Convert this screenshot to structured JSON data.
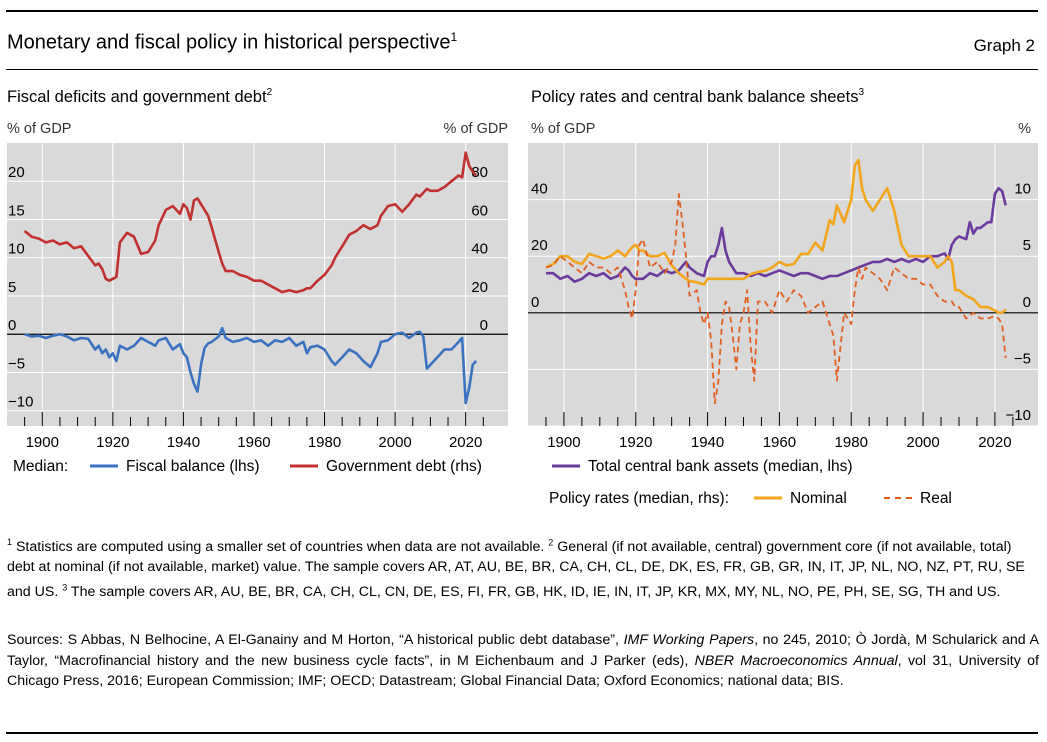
{
  "header": {
    "title": "Monetary and fiscal policy in historical perspective",
    "title_sup": "1",
    "graph_number": "Graph 2"
  },
  "chart_data": [
    {
      "type": "line",
      "title": "Fiscal deficits and government debt",
      "title_sup": "2",
      "ylabel_left": "% of GDP",
      "ylabel_right": "% of GDP",
      "xlim": [
        1890,
        2032
      ],
      "ylim_left": [
        -12,
        25
      ],
      "ylim_right": [
        -48,
        100
      ],
      "yticks_left": [
        20,
        15,
        10,
        5,
        0,
        -5,
        -10
      ],
      "yticks_right": [
        80,
        60,
        40,
        20,
        0
      ],
      "xticks": [
        1900,
        1920,
        1940,
        1960,
        1980,
        2000,
        2020
      ],
      "legend_prefix": "Median:",
      "colors": {
        "fiscal": "#3a72c2",
        "debt": "#c0312f"
      },
      "series": [
        {
          "name": "Fiscal balance (lhs)",
          "axis": "left",
          "x": [
            1895,
            1897,
            1899,
            1901,
            1903,
            1905,
            1907,
            1909,
            1911,
            1913,
            1915,
            1916,
            1917,
            1918,
            1919,
            1920,
            1921,
            1922,
            1924,
            1926,
            1928,
            1930,
            1932,
            1933,
            1935,
            1937,
            1939,
            1940,
            1941,
            1942,
            1943,
            1944,
            1945,
            1946,
            1947,
            1948,
            1950,
            1951,
            1952,
            1954,
            1956,
            1958,
            1960,
            1962,
            1964,
            1966,
            1968,
            1970,
            1972,
            1974,
            1975,
            1976,
            1978,
            1980,
            1982,
            1983,
            1985,
            1987,
            1989,
            1991,
            1993,
            1995,
            1996,
            1998,
            2000,
            2002,
            2004,
            2006,
            2007,
            2008,
            2009,
            2010,
            2012,
            2014,
            2016,
            2018,
            2019,
            2020,
            2021,
            2022,
            2023
          ],
          "values": [
            0,
            -0.3,
            -0.2,
            -0.5,
            -0.2,
            0,
            -0.3,
            -0.8,
            -0.5,
            -0.6,
            -2,
            -1.5,
            -2.5,
            -2,
            -3,
            -2.5,
            -3.5,
            -1.5,
            -2,
            -1.5,
            -0.5,
            -1,
            -1.5,
            -0.8,
            -0.5,
            -2,
            -1.3,
            -2.5,
            -3,
            -5,
            -6.5,
            -7.5,
            -4,
            -1.8,
            -1.2,
            -1,
            -0.3,
            0.8,
            -0.5,
            -1,
            -0.8,
            -0.5,
            -1,
            -0.8,
            -1.5,
            -0.8,
            -1,
            -0.5,
            -1.5,
            -1,
            -2.5,
            -1.7,
            -1.5,
            -2,
            -3.5,
            -4,
            -3,
            -2,
            -2.5,
            -3.5,
            -4.3,
            -2.5,
            -1,
            -0.8,
            0,
            0.2,
            -0.5,
            0.2,
            0.3,
            -0.3,
            -4.5,
            -4,
            -3,
            -2,
            -2,
            -1,
            -0.5,
            -9,
            -7,
            -4,
            -3.5
          ]
        },
        {
          "name": "Government debt (rhs)",
          "axis": "right",
          "x": [
            1895,
            1897,
            1899,
            1901,
            1903,
            1905,
            1907,
            1909,
            1911,
            1913,
            1915,
            1916,
            1917,
            1918,
            1919,
            1920,
            1921,
            1922,
            1924,
            1926,
            1928,
            1930,
            1932,
            1933,
            1935,
            1937,
            1939,
            1940,
            1941,
            1942,
            1943,
            1944,
            1945,
            1946,
            1947,
            1948,
            1950,
            1951,
            1952,
            1954,
            1956,
            1958,
            1960,
            1962,
            1964,
            1966,
            1968,
            1970,
            1972,
            1974,
            1975,
            1976,
            1978,
            1980,
            1982,
            1983,
            1985,
            1987,
            1989,
            1991,
            1993,
            1995,
            1996,
            1998,
            2000,
            2002,
            2004,
            2006,
            2007,
            2008,
            2009,
            2010,
            2012,
            2014,
            2016,
            2018,
            2019,
            2020,
            2021,
            2022,
            2023
          ],
          "values": [
            54,
            51,
            50,
            48,
            49,
            47,
            48,
            45,
            46,
            41,
            36,
            37,
            34,
            29,
            28,
            29,
            30,
            48,
            53,
            51,
            42,
            43,
            49,
            57,
            65,
            67,
            63,
            68,
            66,
            60,
            70,
            71,
            68,
            65,
            62,
            56,
            43,
            37,
            33,
            33,
            31,
            30,
            28,
            28,
            26,
            24,
            22,
            23,
            22,
            23,
            24,
            24,
            28,
            31,
            36,
            40,
            46,
            52,
            54,
            57,
            55,
            57,
            62,
            67,
            68,
            64,
            68,
            73,
            72,
            74,
            76,
            75,
            75,
            77,
            80,
            83,
            82,
            95,
            88,
            85,
            83
          ]
        }
      ]
    },
    {
      "type": "line",
      "title": "Policy rates and central bank balance sheets",
      "title_sup": "3",
      "ylabel_left": "% of GDP",
      "ylabel_right": "%",
      "xlim": [
        1890,
        2032
      ],
      "ylim_left": [
        -40,
        60
      ],
      "ylim_right": [
        -10,
        15
      ],
      "yticks_left": [
        40,
        20,
        0
      ],
      "yticks_right": [
        10,
        5,
        0,
        -5,
        -10
      ],
      "xticks": [
        1900,
        1920,
        1940,
        1960,
        1980,
        2000,
        2020
      ],
      "legend_prefix": "Policy rates (median, rhs):",
      "colors": {
        "assets": "#6b3a9e",
        "nominal": "#f4a51c",
        "real": "#e35e1d"
      },
      "series": [
        {
          "name": "Total central bank assets (median, lhs)",
          "axis": "left",
          "x": [
            1895,
            1897,
            1899,
            1901,
            1903,
            1905,
            1907,
            1909,
            1911,
            1913,
            1915,
            1917,
            1918,
            1919,
            1920,
            1922,
            1924,
            1926,
            1928,
            1930,
            1932,
            1934,
            1935,
            1937,
            1939,
            1940,
            1941,
            1942,
            1943,
            1944,
            1945,
            1946,
            1947,
            1948,
            1950,
            1952,
            1954,
            1956,
            1958,
            1960,
            1962,
            1964,
            1966,
            1968,
            1970,
            1972,
            1974,
            1976,
            1978,
            1980,
            1982,
            1984,
            1986,
            1988,
            1990,
            1992,
            1994,
            1996,
            1998,
            2000,
            2002,
            2004,
            2006,
            2007,
            2008,
            2009,
            2010,
            2012,
            2013,
            2014,
            2015,
            2016,
            2017,
            2018,
            2019,
            2020,
            2021,
            2022,
            2023
          ],
          "values": [
            14,
            14,
            12,
            13,
            11,
            12,
            14,
            13,
            14,
            12,
            13,
            16,
            15,
            13,
            12,
            12,
            14,
            13,
            15,
            14,
            15,
            18,
            16,
            14,
            13,
            18,
            20,
            20,
            24,
            30,
            22,
            18,
            16,
            14,
            14,
            13,
            14,
            13,
            14,
            15,
            14,
            13,
            14,
            14,
            13,
            12,
            13,
            13,
            14,
            15,
            16,
            17,
            18,
            18,
            19,
            18,
            19,
            18,
            19,
            18,
            20,
            20,
            21,
            19,
            24,
            26,
            27,
            26,
            32,
            28,
            30,
            30,
            31,
            32,
            32,
            42,
            44,
            43,
            38
          ]
        },
        {
          "name": "Nominal",
          "axis": "right",
          "x": [
            1895,
            1897,
            1899,
            1901,
            1903,
            1905,
            1907,
            1909,
            1911,
            1913,
            1915,
            1917,
            1919,
            1920,
            1921,
            1922,
            1924,
            1926,
            1928,
            1930,
            1932,
            1934,
            1935,
            1937,
            1939,
            1940,
            1942,
            1944,
            1946,
            1948,
            1950,
            1952,
            1954,
            1956,
            1958,
            1960,
            1962,
            1964,
            1966,
            1968,
            1970,
            1972,
            1974,
            1975,
            1976,
            1978,
            1980,
            1981,
            1982,
            1983,
            1984,
            1986,
            1988,
            1990,
            1992,
            1994,
            1996,
            1998,
            2000,
            2002,
            2004,
            2006,
            2007,
            2008,
            2009,
            2010,
            2012,
            2014,
            2016,
            2018,
            2020,
            2021,
            2022,
            2023
          ],
          "values": [
            4,
            4.3,
            5,
            5,
            4.5,
            4.3,
            5.2,
            5,
            4.8,
            5,
            5.5,
            5,
            5.8,
            6,
            5.5,
            5.5,
            5,
            5,
            5.3,
            4.2,
            3.5,
            3,
            2.8,
            2.7,
            2.5,
            3,
            3,
            3,
            3,
            3,
            3,
            3.4,
            3.6,
            3.7,
            4,
            4.5,
            4.2,
            4.3,
            5.2,
            5.2,
            6.2,
            5.5,
            8.2,
            7.8,
            9.5,
            8,
            10,
            13,
            13.5,
            11,
            10,
            9,
            10,
            11,
            9,
            6,
            5,
            5,
            5,
            5,
            4,
            4.5,
            5,
            4.5,
            2,
            2,
            1.5,
            1.2,
            0.5,
            0.5,
            0.2,
            0,
            0,
            0.3
          ]
        },
        {
          "name": "Real",
          "axis": "right",
          "x": [
            1895,
            1897,
            1899,
            1901,
            1903,
            1905,
            1907,
            1909,
            1911,
            1913,
            1915,
            1916,
            1917,
            1918,
            1919,
            1920,
            1921,
            1922,
            1924,
            1926,
            1928,
            1930,
            1931,
            1932,
            1933,
            1934,
            1935,
            1937,
            1938,
            1939,
            1940,
            1941,
            1942,
            1943,
            1944,
            1945,
            1946,
            1947,
            1948,
            1949,
            1950,
            1951,
            1952,
            1953,
            1954,
            1956,
            1958,
            1960,
            1962,
            1964,
            1966,
            1968,
            1970,
            1972,
            1973,
            1974,
            1975,
            1976,
            1977,
            1978,
            1980,
            1981,
            1982,
            1983,
            1984,
            1986,
            1988,
            1990,
            1992,
            1994,
            1996,
            1998,
            2000,
            2002,
            2004,
            2006,
            2008,
            2009,
            2010,
            2012,
            2014,
            2016,
            2018,
            2020,
            2021,
            2022,
            2023
          ],
          "values": [
            4,
            4.2,
            5,
            4.5,
            4,
            3.5,
            4.5,
            4,
            4,
            3.5,
            4,
            3,
            2,
            0.5,
            -0.5,
            2,
            6,
            6.5,
            4,
            4.5,
            3.5,
            4.5,
            6,
            10.5,
            8,
            5,
            1.5,
            2,
            0,
            -1,
            0,
            -2.5,
            -8,
            -6,
            -1,
            1,
            0.5,
            -2,
            -5,
            -1,
            0,
            2,
            -3,
            -6,
            1,
            1,
            0,
            2,
            1,
            2,
            1.5,
            0,
            0.5,
            1,
            0,
            -1,
            -2,
            -6,
            -3,
            0,
            -1,
            2,
            4,
            3,
            4,
            3.5,
            3,
            2,
            4,
            3.5,
            3,
            3,
            2.5,
            2.5,
            1.5,
            1,
            1,
            0.5,
            0.5,
            -0.5,
            0,
            -0.5,
            -0.5,
            -0.3,
            -0.5,
            -1,
            -4
          ]
        }
      ]
    }
  ],
  "footnotes": {
    "text": " Statistics are computed using a smaller set of countries when data are not available.   General (if not available, central) government core (if not available, total) debt at nominal (if not available, market) value. The sample covers AR, AT, AU, BE, BR, CA, CH, CL, DE, DK, ES, FR, GB, GR, IN, IT, JP, NL, NO, NZ, PT, RU, SE and US.    The sample covers AR, AU, BE, BR, CA, CH, CL, CN, DE, ES, FI, FR, GB, HK, ID, IE, IN, IT, JP, KR, MX, MY, NL, NO, PE, PH, SE, SG, TH and US."
  },
  "sources": {
    "p1": "Sources: S Abbas, N Belhocine, A El-Ganainy and M Horton, “A historical public debt database”, ",
    "i1": "IMF Working Papers",
    "p2": ", no 245, 2010; Ò Jordà, M Schularick and A Taylor, “Macrofinancial history and the new business cycle facts”, in M Eichenbaum and J Parker (eds), ",
    "i2": "NBER Macroeconomics Annual",
    "p3": ", vol 31, University of Chicago Press, 2016; European Commission; IMF; OECD; Datastream; Global Financial Data; Oxford Economics; national data; BIS."
  }
}
